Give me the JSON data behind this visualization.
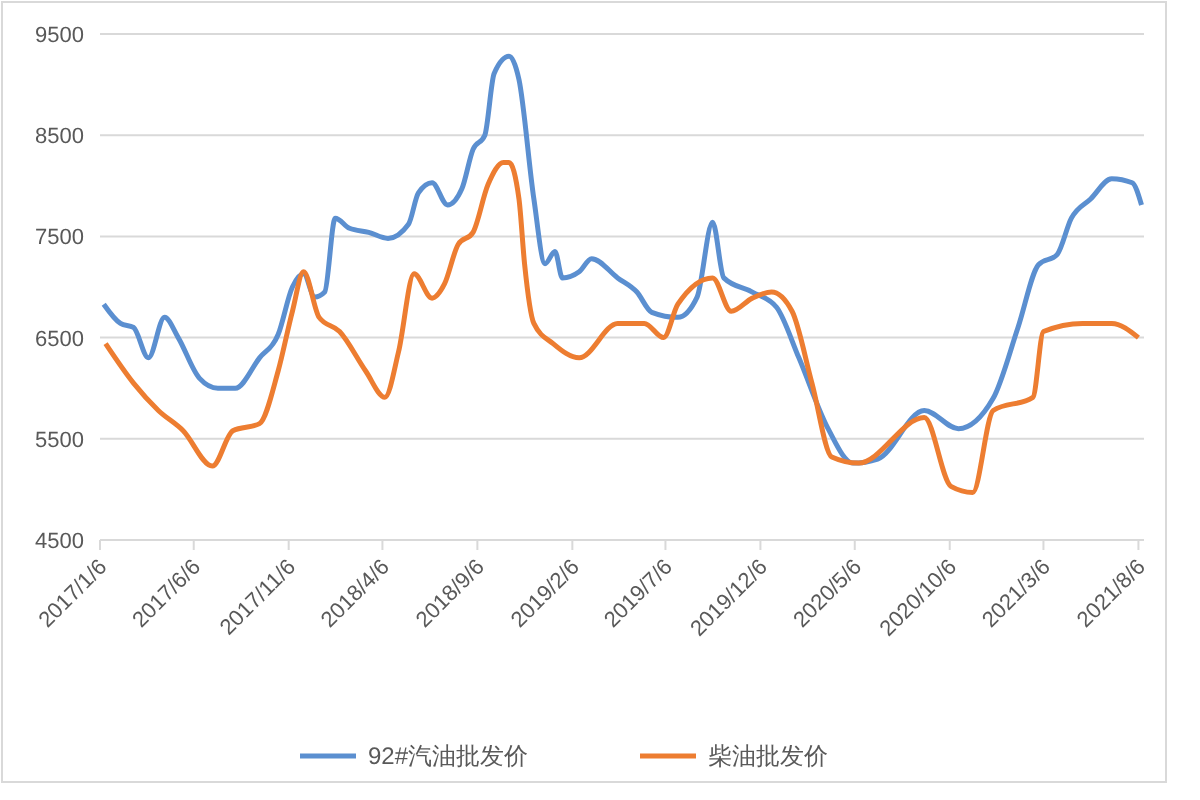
{
  "chart_data": {
    "type": "line",
    "x": [
      "2017-01-12",
      "2017-02-08",
      "2017-03-01",
      "2017-03-25",
      "2017-04-20",
      "2017-05-12",
      "2017-06-15",
      "2017-07-15",
      "2017-08-12",
      "2017-09-20",
      "2017-10-20",
      "2017-11-12",
      "2017-11-30",
      "2017-12-18",
      "2018-01-03",
      "2018-01-20",
      "2018-02-12",
      "2018-03-15",
      "2018-04-15",
      "2018-05-18",
      "2018-06-03",
      "2018-06-25",
      "2018-07-20",
      "2018-08-12",
      "2018-08-30",
      "2018-09-18",
      "2018-10-03",
      "2018-10-27",
      "2018-11-12",
      "2018-12-06",
      "2018-12-24",
      "2019-01-09",
      "2019-01-21",
      "2019-02-17",
      "2019-03-09",
      "2019-04-20",
      "2019-05-21",
      "2019-06-14",
      "2019-07-26",
      "2019-08-26",
      "2019-09-20",
      "2019-10-08",
      "2019-11-23",
      "2020-01-01",
      "2020-02-06",
      "2020-03-24",
      "2020-05-03",
      "2020-06-12",
      "2020-08-26",
      "2020-10-20",
      "2020-12-15",
      "2021-01-24",
      "2021-02-26",
      "2021-03-28",
      "2021-04-20",
      "2021-05-21",
      "2021-06-24",
      "2021-07-27",
      "2021-08-11"
    ],
    "series": [
      {
        "name": "92#汽油批发价",
        "color": "#5b8fd0",
        "values": [
          6830,
          6640,
          6600,
          6300,
          6700,
          6500,
          6100,
          6000,
          6000,
          6300,
          6530,
          7000,
          7130,
          6900,
          6950,
          7680,
          7580,
          7540,
          7480,
          7620,
          7930,
          8030,
          7810,
          7970,
          8360,
          8500,
          9110,
          9280,
          9050,
          7870,
          7230,
          7350,
          7090,
          7150,
          7280,
          7090,
          6950,
          6750,
          6700,
          6900,
          7640,
          7090,
          6950,
          6800,
          6300,
          5600,
          5260,
          5300,
          5780,
          5600,
          5900,
          6600,
          7220,
          7320,
          7680,
          7870,
          8070,
          8030,
          7810
        ]
      },
      {
        "name": "柴油批发价",
        "color": "#ed7d31",
        "x": [
          "2017-01-15",
          "2017-03-01",
          "2017-04-10",
          "2017-05-20",
          "2017-07-06",
          "2017-08-08",
          "2017-09-20",
          "2017-10-20",
          "2017-11-12",
          "2017-11-30",
          "2017-12-25",
          "2018-01-27",
          "2018-03-10",
          "2018-04-10",
          "2018-05-02",
          "2018-05-27",
          "2018-06-25",
          "2018-07-15",
          "2018-08-06",
          "2018-08-30",
          "2018-09-23",
          "2018-10-18",
          "2018-10-27",
          "2018-11-12",
          "2018-11-21",
          "2018-12-06",
          "2019-01-06",
          "2019-02-17",
          "2019-04-20",
          "2019-06-02",
          "2019-07-03",
          "2019-07-26",
          "2019-09-20",
          "2019-10-20",
          "2019-11-23",
          "2019-12-24",
          "2020-01-26",
          "2020-02-27",
          "2020-03-30",
          "2020-05-12",
          "2020-08-26",
          "2020-10-08",
          "2020-11-12",
          "2020-12-15",
          "2021-02-17",
          "2021-03-06",
          "2021-05-08",
          "2021-06-24",
          "2021-08-06"
        ],
        "values": [
          6440,
          6050,
          5780,
          5580,
          5230,
          5580,
          5650,
          6170,
          6760,
          7150,
          6700,
          6560,
          6170,
          5910,
          6360,
          7130,
          6890,
          7030,
          7420,
          7540,
          8010,
          8230,
          8230,
          7870,
          7230,
          6640,
          6440,
          6300,
          6640,
          6640,
          6500,
          6830,
          7090,
          6760,
          6890,
          6950,
          6760,
          6050,
          5320,
          5260,
          5710,
          5030,
          4970,
          5780,
          5910,
          6560,
          6640,
          6640,
          6500
        ]
      }
    ],
    "xlim": [
      "2017-01-06",
      "2021-08-15"
    ],
    "xticks": [
      {
        "value": "2017-01-06",
        "label": "2017/1/6"
      },
      {
        "value": "2017-06-06",
        "label": "2017/6/6"
      },
      {
        "value": "2017-11-06",
        "label": "2017/11/6"
      },
      {
        "value": "2018-04-06",
        "label": "2018/4/6"
      },
      {
        "value": "2018-09-06",
        "label": "2018/9/6"
      },
      {
        "value": "2019-02-06",
        "label": "2019/2/6"
      },
      {
        "value": "2019-07-06",
        "label": "2019/7/6"
      },
      {
        "value": "2019-12-06",
        "label": "2019/12/6"
      },
      {
        "value": "2020-05-06",
        "label": "2020/5/6"
      },
      {
        "value": "2020-10-06",
        "label": "2020/10/6"
      },
      {
        "value": "2021-03-06",
        "label": "2021/3/6"
      },
      {
        "value": "2021-08-06",
        "label": "2021/8/6"
      }
    ],
    "ylim": [
      4500,
      9500
    ],
    "yticks": [
      4500,
      5500,
      6500,
      7500,
      8500,
      9500
    ],
    "grid": "y",
    "legend": "bottom",
    "marker": "none",
    "line_style": "solid"
  }
}
